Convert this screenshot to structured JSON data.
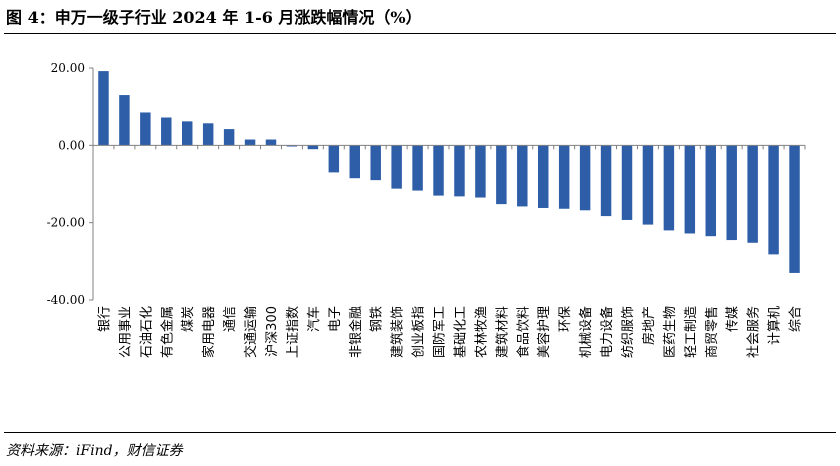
{
  "title": "图 4：申万一级子行业 2024 年 1-6 月涨跌幅情况（%）",
  "source": "资料来源：iFind，财信证券",
  "chart_data": {
    "type": "bar",
    "title": "图 4：申万一级子行业 2024 年 1-6 月涨跌幅情况（%）",
    "xlabel": "",
    "ylabel": "",
    "ylim": [
      -40,
      20
    ],
    "yticks": [
      "20.00",
      "0.00",
      "-20.00",
      "-40.00"
    ],
    "grid": false,
    "legend": "none",
    "bar_color": "#2E5EA8",
    "categories": [
      "银行",
      "公用事业",
      "石油石化",
      "有色金属",
      "煤炭",
      "家用电器",
      "通信",
      "交通运输",
      "沪深300",
      "上证指数",
      "汽车",
      "电子",
      "非银金融",
      "钢铁",
      "建筑装饰",
      "创业板指",
      "国防军工",
      "基础化工",
      "农林牧渔",
      "建筑材料",
      "食品饮料",
      "美容护理",
      "环保",
      "机械设备",
      "电力设备",
      "纺织服饰",
      "房地产",
      "医药生物",
      "轻工制造",
      "商贸零售",
      "传媒",
      "社会服务",
      "计算机",
      "综合"
    ],
    "values": [
      19.2,
      13.0,
      8.5,
      7.2,
      6.2,
      5.7,
      4.2,
      1.5,
      1.5,
      -0.3,
      -1.0,
      -7.0,
      -8.5,
      -9.0,
      -11.2,
      -11.7,
      -13.0,
      -13.2,
      -13.5,
      -15.2,
      -15.8,
      -16.2,
      -16.4,
      -16.8,
      -18.3,
      -19.3,
      -20.5,
      -22.0,
      -22.8,
      -23.5,
      -24.5,
      -25.2,
      -28.2,
      -33.0
    ]
  }
}
